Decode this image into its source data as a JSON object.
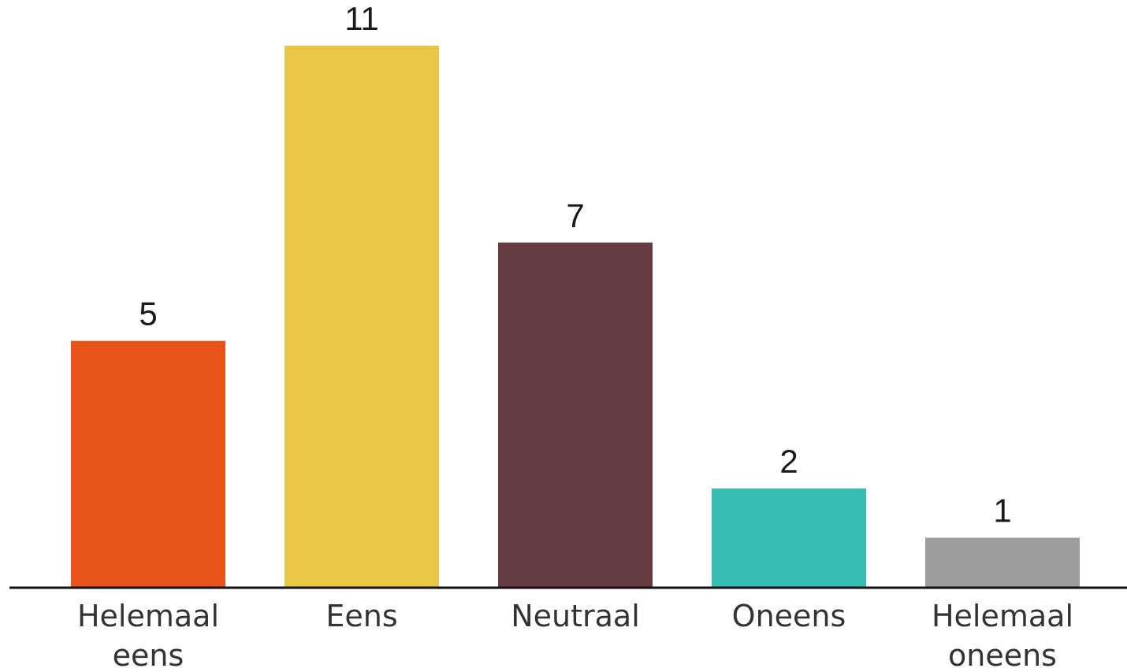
{
  "chart_data": {
    "type": "bar",
    "title": "",
    "xlabel": "",
    "ylabel": "",
    "ylim": [
      0,
      11
    ],
    "grid": false,
    "legend": "none",
    "categories": [
      [
        "Helemaal",
        "eens"
      ],
      [
        "Eens"
      ],
      [
        "Neutraal"
      ],
      [
        "Oneens"
      ],
      [
        "Helemaal",
        "oneens"
      ]
    ],
    "values": [
      5,
      11,
      7,
      2,
      1
    ],
    "colors": [
      "#e8541a",
      "#eac646",
      "#653b42",
      "#36bdb2",
      "#9d9d9d"
    ],
    "axis_color": "#111111"
  }
}
